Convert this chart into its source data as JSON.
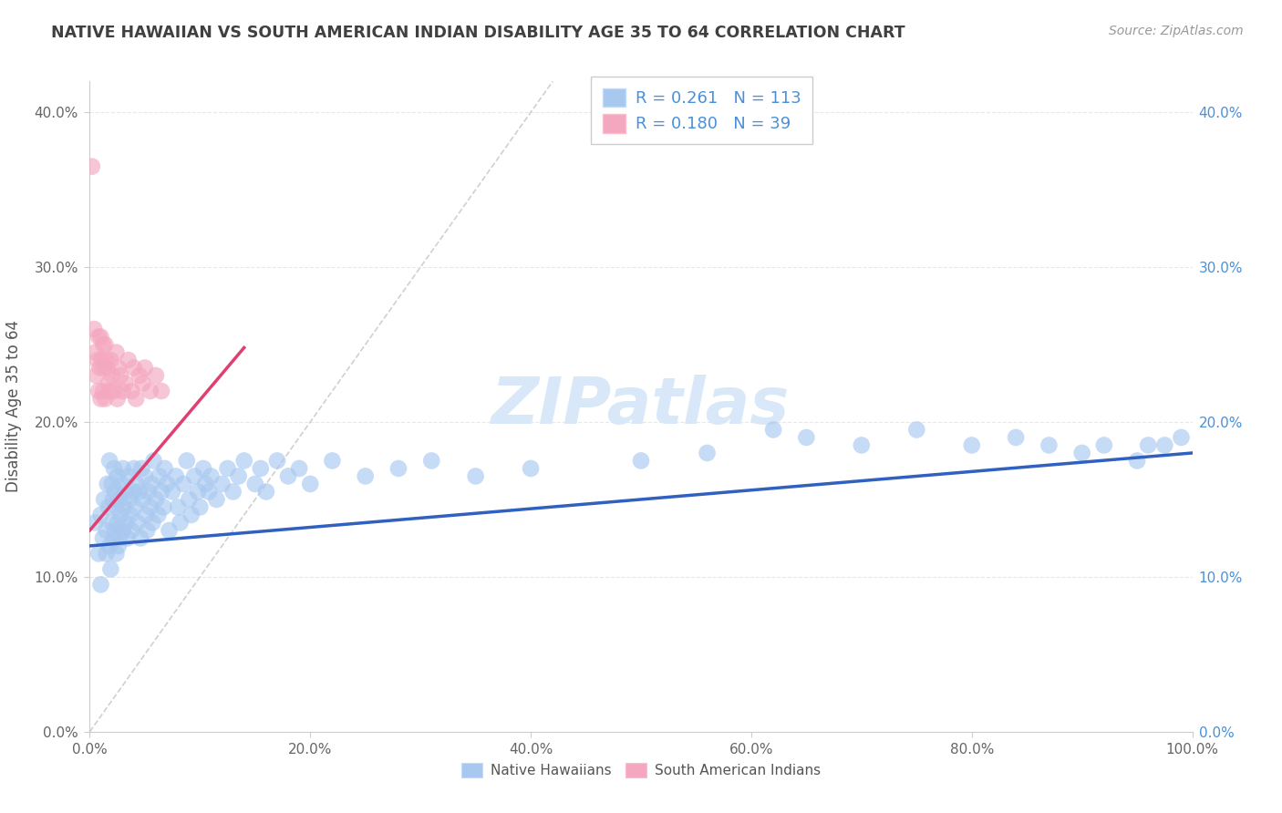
{
  "title": "NATIVE HAWAIIAN VS SOUTH AMERICAN INDIAN DISABILITY AGE 35 TO 64 CORRELATION CHART",
  "source": "Source: ZipAtlas.com",
  "xlabel": "",
  "ylabel": "Disability Age 35 to 64",
  "xlim": [
    0.0,
    1.0
  ],
  "ylim": [
    0.0,
    0.42
  ],
  "xticks": [
    0.0,
    0.2,
    0.4,
    0.6,
    0.8,
    1.0
  ],
  "xticklabels": [
    "0.0%",
    "20.0%",
    "40.0%",
    "60.0%",
    "80.0%",
    "100.0%"
  ],
  "yticks": [
    0.0,
    0.1,
    0.2,
    0.3,
    0.4
  ],
  "yticklabels": [
    "0.0%",
    "10.0%",
    "20.0%",
    "30.0%",
    "40.0%"
  ],
  "blue_R": 0.261,
  "blue_N": 113,
  "pink_R": 0.18,
  "pink_N": 39,
  "blue_color": "#a8c8f0",
  "pink_color": "#f4a8c0",
  "blue_line_color": "#3060c0",
  "pink_line_color": "#e04070",
  "diagonal_color": "#d0d0d0",
  "background_color": "#ffffff",
  "grid_color": "#e8e8e8",
  "title_color": "#404040",
  "right_tick_color": "#4a90d9",
  "watermark_color": "#d8e8f8",
  "blue_scatter_x": [
    0.005,
    0.008,
    0.01,
    0.01,
    0.012,
    0.013,
    0.015,
    0.015,
    0.016,
    0.017,
    0.018,
    0.018,
    0.019,
    0.02,
    0.02,
    0.021,
    0.022,
    0.022,
    0.023,
    0.023,
    0.024,
    0.024,
    0.025,
    0.025,
    0.026,
    0.027,
    0.027,
    0.028,
    0.029,
    0.03,
    0.03,
    0.031,
    0.032,
    0.033,
    0.034,
    0.035,
    0.036,
    0.037,
    0.038,
    0.039,
    0.04,
    0.041,
    0.042,
    0.043,
    0.045,
    0.046,
    0.047,
    0.048,
    0.05,
    0.051,
    0.052,
    0.053,
    0.055,
    0.056,
    0.057,
    0.058,
    0.06,
    0.062,
    0.063,
    0.065,
    0.067,
    0.068,
    0.07,
    0.072,
    0.075,
    0.078,
    0.08,
    0.082,
    0.085,
    0.088,
    0.09,
    0.092,
    0.095,
    0.098,
    0.1,
    0.103,
    0.105,
    0.108,
    0.11,
    0.115,
    0.12,
    0.125,
    0.13,
    0.135,
    0.14,
    0.15,
    0.155,
    0.16,
    0.17,
    0.18,
    0.19,
    0.2,
    0.22,
    0.25,
    0.28,
    0.31,
    0.35,
    0.4,
    0.5,
    0.56,
    0.62,
    0.65,
    0.7,
    0.75,
    0.8,
    0.84,
    0.87,
    0.9,
    0.92,
    0.95,
    0.96,
    0.975,
    0.99
  ],
  "blue_scatter_y": [
    0.135,
    0.115,
    0.14,
    0.095,
    0.125,
    0.15,
    0.13,
    0.115,
    0.16,
    0.145,
    0.175,
    0.12,
    0.105,
    0.16,
    0.135,
    0.15,
    0.17,
    0.125,
    0.155,
    0.13,
    0.145,
    0.115,
    0.165,
    0.135,
    0.12,
    0.15,
    0.125,
    0.14,
    0.16,
    0.17,
    0.13,
    0.145,
    0.155,
    0.135,
    0.125,
    0.165,
    0.15,
    0.14,
    0.13,
    0.155,
    0.17,
    0.145,
    0.16,
    0.135,
    0.155,
    0.125,
    0.17,
    0.15,
    0.165,
    0.14,
    0.13,
    0.155,
    0.145,
    0.16,
    0.135,
    0.175,
    0.15,
    0.14,
    0.165,
    0.155,
    0.145,
    0.17,
    0.16,
    0.13,
    0.155,
    0.165,
    0.145,
    0.135,
    0.16,
    0.175,
    0.15,
    0.14,
    0.165,
    0.155,
    0.145,
    0.17,
    0.16,
    0.155,
    0.165,
    0.15,
    0.16,
    0.17,
    0.155,
    0.165,
    0.175,
    0.16,
    0.17,
    0.155,
    0.175,
    0.165,
    0.17,
    0.16,
    0.175,
    0.165,
    0.17,
    0.175,
    0.165,
    0.17,
    0.175,
    0.18,
    0.195,
    0.19,
    0.185,
    0.195,
    0.185,
    0.19,
    0.185,
    0.18,
    0.185,
    0.175,
    0.185,
    0.185,
    0.19
  ],
  "pink_scatter_x": [
    0.002,
    0.004,
    0.005,
    0.006,
    0.007,
    0.008,
    0.008,
    0.009,
    0.01,
    0.01,
    0.011,
    0.012,
    0.012,
    0.013,
    0.014,
    0.014,
    0.015,
    0.016,
    0.017,
    0.018,
    0.019,
    0.02,
    0.022,
    0.024,
    0.025,
    0.026,
    0.028,
    0.03,
    0.032,
    0.035,
    0.038,
    0.04,
    0.042,
    0.045,
    0.048,
    0.05,
    0.055,
    0.06,
    0.065
  ],
  "pink_scatter_y": [
    0.365,
    0.26,
    0.245,
    0.23,
    0.24,
    0.255,
    0.22,
    0.235,
    0.255,
    0.215,
    0.24,
    0.25,
    0.22,
    0.235,
    0.25,
    0.215,
    0.24,
    0.235,
    0.225,
    0.22,
    0.24,
    0.23,
    0.22,
    0.245,
    0.215,
    0.235,
    0.23,
    0.22,
    0.225,
    0.24,
    0.22,
    0.235,
    0.215,
    0.23,
    0.225,
    0.235,
    0.22,
    0.23,
    0.22
  ],
  "blue_line_x0": 0.0,
  "blue_line_x1": 1.0,
  "blue_line_y0": 0.12,
  "blue_line_y1": 0.18,
  "pink_line_x0": 0.0,
  "pink_line_x1": 0.14,
  "pink_line_y0": 0.13,
  "pink_line_y1": 0.248,
  "figsize": [
    14.06,
    8.92
  ],
  "dpi": 100
}
